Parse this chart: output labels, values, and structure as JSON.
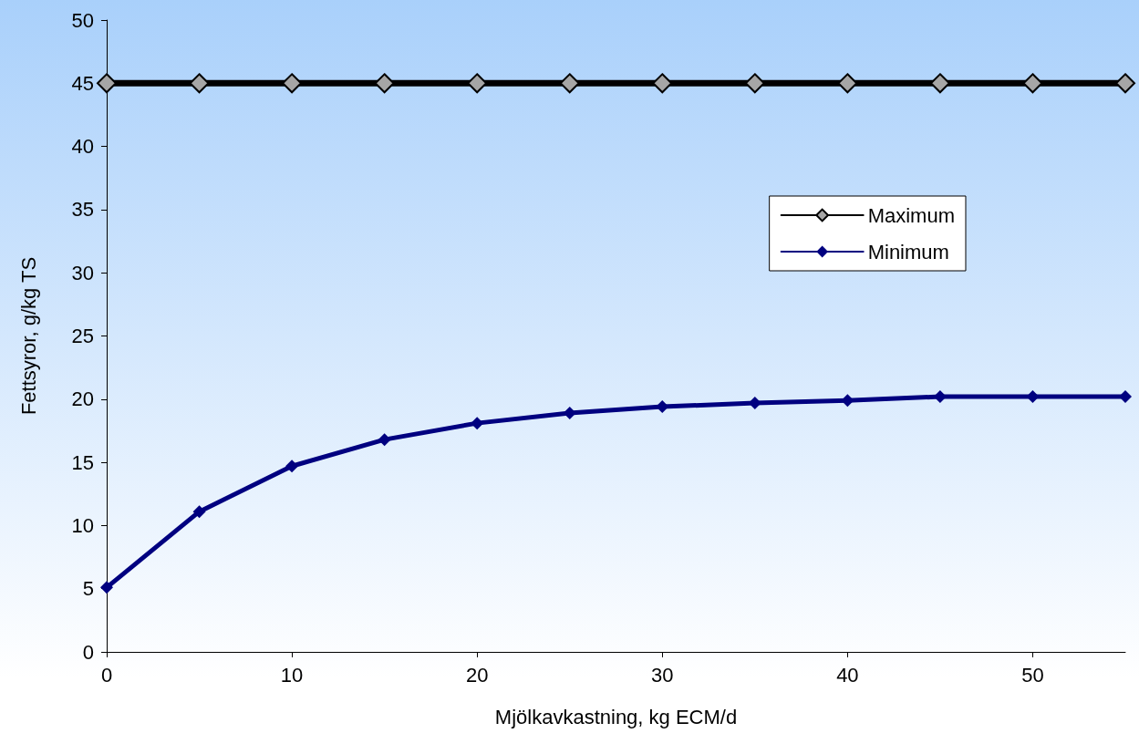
{
  "chart_data": {
    "type": "line",
    "xlabel": "Mjölkavkastning, kg ECM/d",
    "ylabel": "Fettsyror, g/kg TS",
    "x": [
      0,
      5,
      10,
      15,
      20,
      25,
      30,
      35,
      40,
      45,
      50,
      55
    ],
    "series": [
      {
        "name": "Maximum",
        "color": "#000000",
        "values": [
          45,
          45,
          45,
          45,
          45,
          45,
          45,
          45,
          45,
          45,
          45,
          45
        ]
      },
      {
        "name": "Minimum",
        "color": "#000080",
        "values": [
          5.1,
          11.1,
          14.7,
          16.8,
          18.1,
          18.9,
          19.4,
          19.7,
          19.9,
          20.2,
          20.2,
          20.2
        ]
      }
    ],
    "xlim": [
      0,
      55
    ],
    "xticks": [
      0,
      10,
      20,
      30,
      40,
      50
    ],
    "ylim": [
      0,
      50
    ],
    "yticks": [
      0,
      5,
      10,
      15,
      20,
      25,
      30,
      35,
      40,
      45,
      50
    ],
    "grid": false,
    "legend": "right",
    "marker": "diamond",
    "line_style": "solid"
  }
}
